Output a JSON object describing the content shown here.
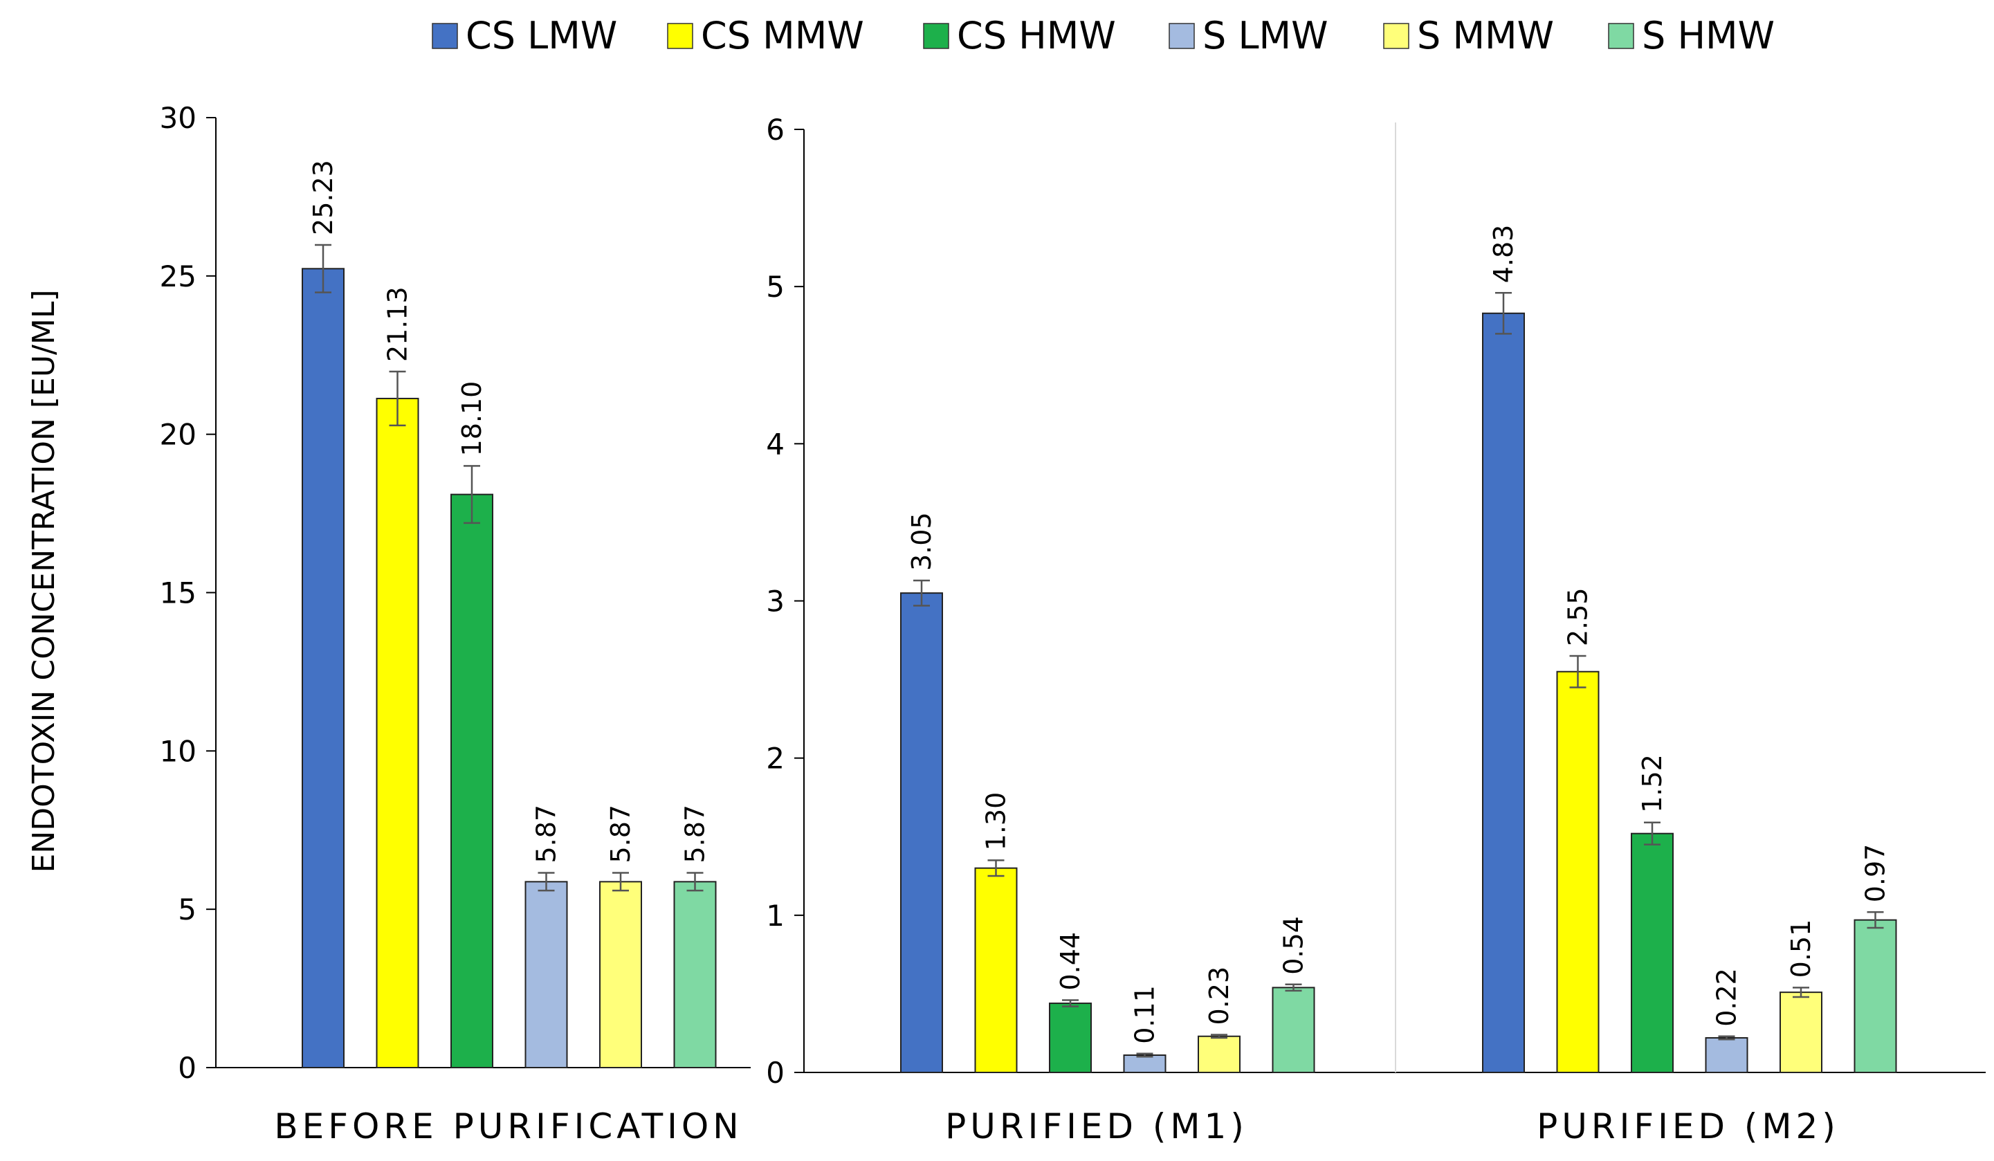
{
  "legend": {
    "items": [
      {
        "label": "CS LMW",
        "color": "#4472C4"
      },
      {
        "label": "CS MMW",
        "color": "#FFFF00"
      },
      {
        "label": "CS HMW",
        "color": "#1DB04B"
      },
      {
        "label": "S LMW",
        "color": "#A4BBE0"
      },
      {
        "label": "S MMW",
        "color": "#FFFF7A"
      },
      {
        "label": "S HMW",
        "color": "#7FD9A3"
      }
    ]
  },
  "ylabel": "ENDOTOXIN CONCENTRATION [EU/ML]",
  "chart_data": [
    {
      "type": "bar",
      "categories": [
        "BEFORE PURIFICATION"
      ],
      "ylim": [
        0,
        30
      ],
      "yticks": [
        "0",
        "5",
        "10",
        "15",
        "20",
        "25",
        "30"
      ],
      "ylabel": "ENDOTOXIN CONCENTRATION [EU/ML]",
      "series": [
        {
          "name": "CS LMW",
          "values": [
            25.23
          ],
          "labels": [
            "25.23"
          ],
          "errors": [
            0.75
          ]
        },
        {
          "name": "CS MMW",
          "values": [
            21.13
          ],
          "labels": [
            "21.13"
          ],
          "errors": [
            0.85
          ]
        },
        {
          "name": "CS HMW",
          "values": [
            18.1
          ],
          "labels": [
            "18.10"
          ],
          "errors": [
            0.9
          ]
        },
        {
          "name": "S LMW",
          "values": [
            5.87
          ],
          "labels": [
            "5.87"
          ],
          "errors": [
            0.28
          ]
        },
        {
          "name": "S MMW",
          "values": [
            5.87
          ],
          "labels": [
            "5.87"
          ],
          "errors": [
            0.28
          ]
        },
        {
          "name": "S HMW",
          "values": [
            5.87
          ],
          "labels": [
            "5.87"
          ],
          "errors": [
            0.28
          ]
        }
      ]
    },
    {
      "type": "bar",
      "categories": [
        "PURIFIED (M1)",
        "PURIFIED (M2)"
      ],
      "ylim": [
        0,
        6
      ],
      "yticks": [
        "0",
        "1",
        "2",
        "3",
        "4",
        "5",
        "6"
      ],
      "series": [
        {
          "name": "CS LMW",
          "values": [
            3.05,
            4.83
          ],
          "labels": [
            "3.05",
            "4.83"
          ],
          "errors": [
            0.08,
            0.13
          ]
        },
        {
          "name": "CS MMW",
          "values": [
            1.3,
            2.55
          ],
          "labels": [
            "1.30",
            "2.55"
          ],
          "errors": [
            0.05,
            0.1
          ]
        },
        {
          "name": "CS HMW",
          "values": [
            0.44,
            1.52
          ],
          "labels": [
            "0.44",
            "1.52"
          ],
          "errors": [
            0.02,
            0.07
          ]
        },
        {
          "name": "S LMW",
          "values": [
            0.11,
            0.22
          ],
          "labels": [
            "0.11",
            "0.22"
          ],
          "errors": [
            0.01,
            0.01
          ]
        },
        {
          "name": "S MMW",
          "values": [
            0.23,
            0.51
          ],
          "labels": [
            "0.23",
            "0.51"
          ],
          "errors": [
            0.01,
            0.03
          ]
        },
        {
          "name": "S HMW",
          "values": [
            0.54,
            0.97
          ],
          "labels": [
            "0.54",
            "0.97"
          ],
          "errors": [
            0.02,
            0.05
          ]
        }
      ]
    }
  ]
}
